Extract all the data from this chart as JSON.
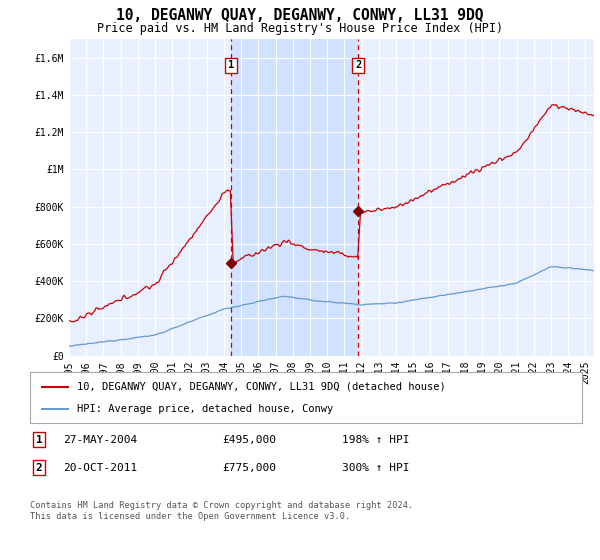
{
  "title": "10, DEGANWY QUAY, DEGANWY, CONWY, LL31 9DQ",
  "subtitle": "Price paid vs. HM Land Registry's House Price Index (HPI)",
  "ylabel_ticks": [
    "£0",
    "£200K",
    "£400K",
    "£600K",
    "£800K",
    "£1M",
    "£1.2M",
    "£1.4M",
    "£1.6M"
  ],
  "ytick_values": [
    0,
    200000,
    400000,
    600000,
    800000,
    1000000,
    1200000,
    1400000,
    1600000
  ],
  "ylim": [
    0,
    1700000
  ],
  "xlim_start": 1995.0,
  "xlim_end": 2025.5,
  "xticks": [
    1995,
    1996,
    1997,
    1998,
    1999,
    2000,
    2001,
    2002,
    2003,
    2004,
    2005,
    2006,
    2007,
    2008,
    2009,
    2010,
    2011,
    2012,
    2013,
    2014,
    2015,
    2016,
    2017,
    2018,
    2019,
    2020,
    2021,
    2022,
    2023,
    2024,
    2025
  ],
  "purchase1_x": 2004.4,
  "purchase1_y": 495000,
  "purchase1_label": "1",
  "purchase1_date": "27-MAY-2004",
  "purchase1_price": "£495,000",
  "purchase1_hpi": "198% ↑ HPI",
  "purchase2_x": 2011.8,
  "purchase2_y": 775000,
  "purchase2_label": "2",
  "purchase2_date": "20-OCT-2011",
  "purchase2_price": "£775,000",
  "purchase2_hpi": "300% ↑ HPI",
  "red_line_color": "#cc0000",
  "blue_line_color": "#6699cc",
  "purchase_marker_color": "#800000",
  "vline_color": "#cc0000",
  "highlight_color": "#cce0ff",
  "background_color": "#ffffff",
  "plot_bg_color": "#e8f0ff",
  "grid_color": "#ffffff",
  "legend_label_red": "10, DEGANWY QUAY, DEGANWY, CONWY, LL31 9DQ (detached house)",
  "legend_label_blue": "HPI: Average price, detached house, Conwy",
  "footnote": "Contains HM Land Registry data © Crown copyright and database right 2024.\nThis data is licensed under the Open Government Licence v3.0.",
  "title_fontsize": 10.5,
  "subtitle_fontsize": 8.5,
  "tick_fontsize": 7,
  "legend_fontsize": 7.5,
  "table_fontsize": 8
}
